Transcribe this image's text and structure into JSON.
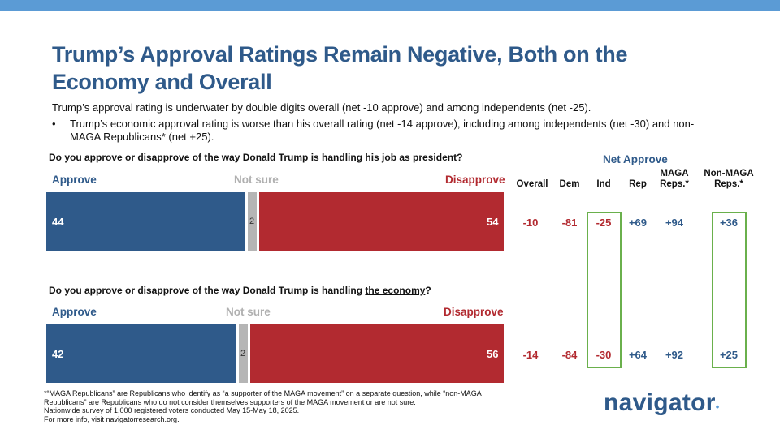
{
  "header": {
    "title_line1": "Trump’s Approval Ratings Remain Negative, Both on the",
    "title_line2": "Economy and Overall",
    "subtitle": "Trump’s approval rating is underwater by double digits overall (net -10 approve) and among independents (net -25).",
    "bullet_line1": "Trump’s economic approval rating is worse than his overall rating (net -14 approve), including among independents (net -30) and non-",
    "bullet_line2": "MAGA Republicans* (net +25).",
    "bullet_symbol": "•"
  },
  "colors": {
    "approve": "#2f5a8a",
    "not_sure": "#b5b5b5",
    "disapprove": "#b22a30",
    "highlight": "#6ab04c",
    "top_bar": "#5b9bd5"
  },
  "chart_data": [
    {
      "type": "bar",
      "orientation": "horizontal-stacked",
      "question_pre": "Do you approve or disapprove of the way Donald Trump is handling his job as president?",
      "question_underline": "",
      "question_post": "",
      "legend": {
        "approve": "Approve",
        "not_sure": "Not sure",
        "disapprove": "Disapprove"
      },
      "series": [
        {
          "name": "Approve",
          "value": 44
        },
        {
          "name": "Not sure",
          "value": 2
        },
        {
          "name": "Disapprove",
          "value": 54
        }
      ],
      "labels": {
        "approve": "44",
        "not_sure": "2",
        "disapprove": "54"
      }
    },
    {
      "type": "bar",
      "orientation": "horizontal-stacked",
      "question_pre": "Do you approve or disapprove of the way Donald Trump is handling ",
      "question_underline": "the economy",
      "question_post": "?",
      "legend": {
        "approve": "Approve",
        "not_sure": "Not sure",
        "disapprove": "Disapprove"
      },
      "series": [
        {
          "name": "Approve",
          "value": 42
        },
        {
          "name": "Not sure",
          "value": 2
        },
        {
          "name": "Disapprove",
          "value": 56
        }
      ],
      "labels": {
        "approve": "42",
        "not_sure": "2",
        "disapprove": "56"
      }
    },
    {
      "type": "table",
      "title": "Net Approve",
      "columns": [
        "Overall",
        "Dem",
        "Ind",
        "Rep",
        "MAGA Reps.*",
        "Non-MAGA Reps.*"
      ],
      "columns_line1": [
        "Overall",
        "Dem",
        "Ind",
        "Rep",
        "MAGA",
        "Non-MAGA"
      ],
      "columns_line2": [
        "",
        "",
        "",
        "",
        "Reps.*",
        "Reps.*"
      ],
      "rows": [
        [
          "-10",
          "-81",
          "-25",
          "+69",
          "+94",
          "+36"
        ],
        [
          "-14",
          "-84",
          "-30",
          "+64",
          "+92",
          "+25"
        ]
      ],
      "highlighted_columns": [
        "Ind",
        "Non-MAGA Reps.*"
      ]
    }
  ],
  "footer": {
    "line1": "*“MAGA Republicans” are Republicans who identify as “a supporter of the MAGA movement” on a separate question, while “non-MAGA",
    "line2": "Republicans” are Republicans who do not consider themselves supporters of the MAGA movement or are not sure.",
    "line3": "Nationwide survey of 1,000 registered voters conducted May 15-May 18, 2025.",
    "line4": "For more info, visit navigatorresearch.org."
  },
  "logo": {
    "text": "navigator",
    "dot": "•"
  }
}
